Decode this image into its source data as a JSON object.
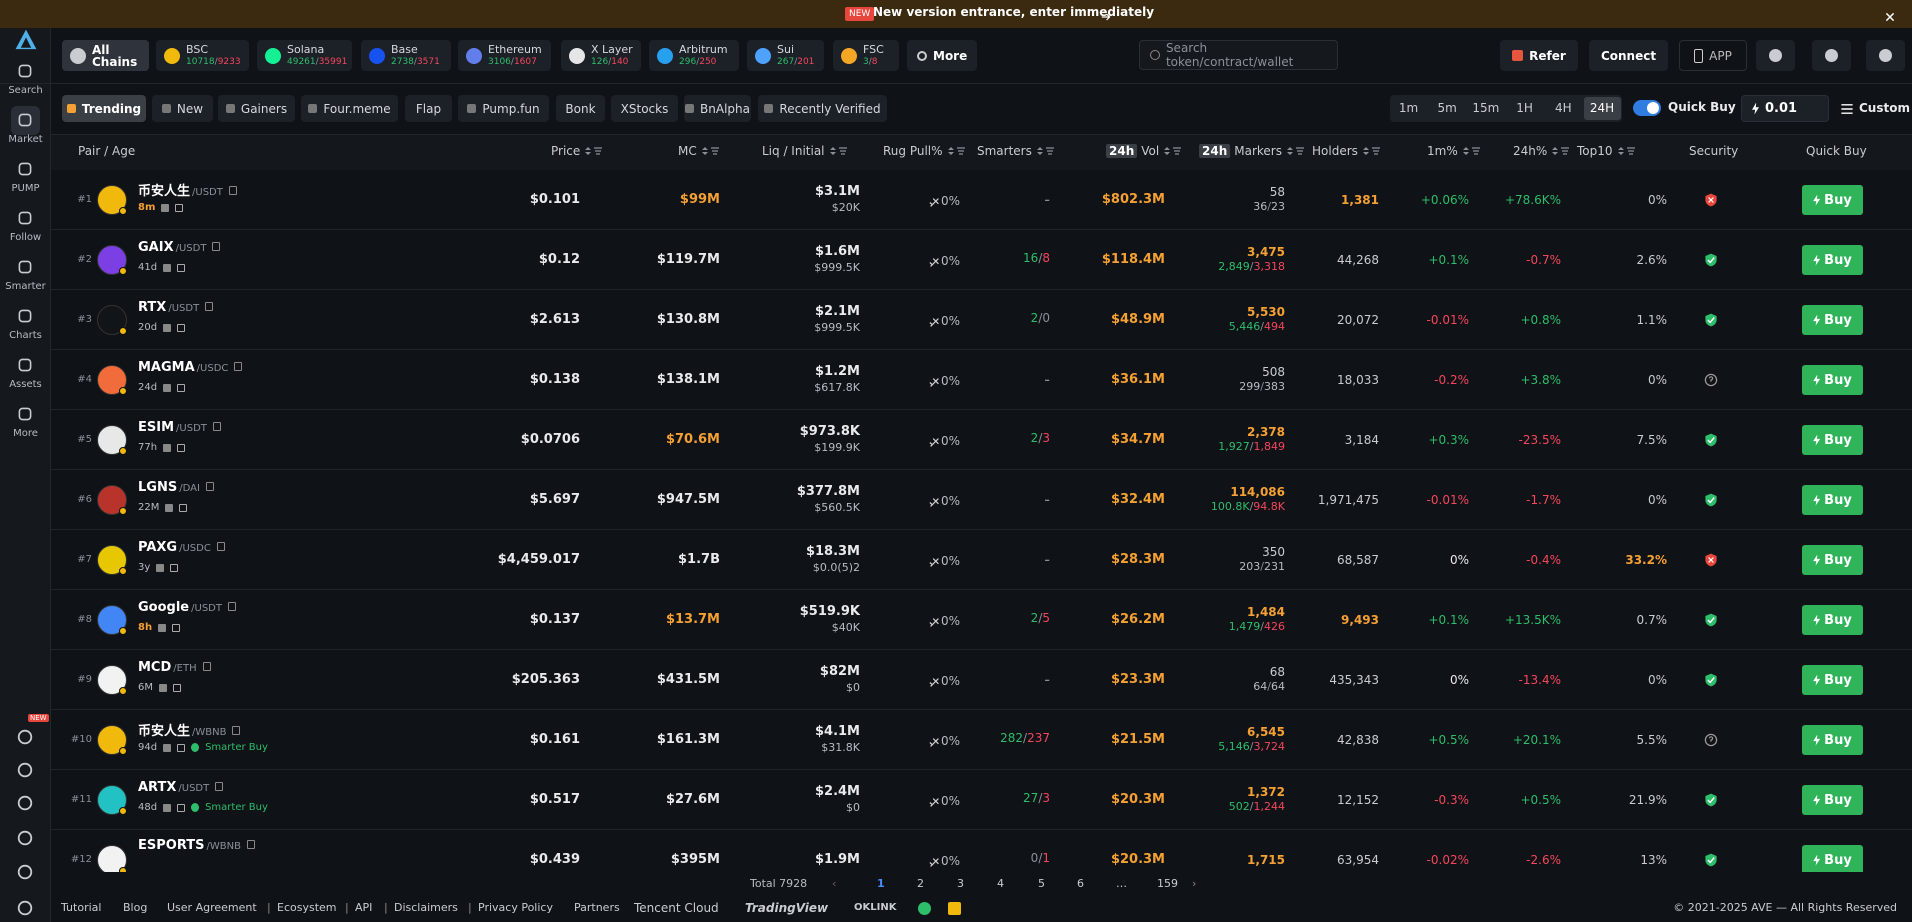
{
  "banner": {
    "badge": "NEW",
    "text": "New version entrance, enter immediately"
  },
  "separator": "/",
  "divider": "|",
  "sidebar": {
    "items": [
      "Search",
      "Market",
      "PUMP",
      "Follow",
      "Smarter",
      "Charts",
      "Assets",
      "More"
    ],
    "active": 1,
    "new_badge": "NEW"
  },
  "chains": [
    {
      "name": "All Chains",
      "color": "#c9ccd1"
    },
    {
      "name": "BSC",
      "a": "10718",
      "b": "9233",
      "color": "#f0b90b"
    },
    {
      "name": "Solana",
      "a": "49261",
      "b": "35991",
      "color": "#14f195"
    },
    {
      "name": "Base",
      "a": "2738",
      "b": "3571",
      "color": "#1652f0"
    },
    {
      "name": "Ethereum",
      "a": "3106",
      "b": "1607",
      "color": "#627eea"
    },
    {
      "name": "X Layer",
      "a": "126",
      "b": "140",
      "color": "#e6e6e6"
    },
    {
      "name": "Arbitrum",
      "a": "296",
      "b": "250",
      "color": "#28a0f0"
    },
    {
      "name": "Sui",
      "a": "267",
      "b": "201",
      "color": "#4da2ff"
    },
    {
      "name": "FSC",
      "a": "3",
      "b": "8",
      "color": "#f5a623"
    }
  ],
  "more": "More",
  "search": "Search token/contract/wallet",
  "header_buttons": {
    "refer": "Refer",
    "connect": "Connect",
    "app": "APP"
  },
  "tabs": [
    "Trending",
    "New",
    "Gainers",
    "Four.meme",
    "Flap",
    "Pump.fun",
    "Bonk",
    "XStocks",
    "BnAlpha",
    "Recently Verified"
  ],
  "intervals": [
    "1m",
    "5m",
    "15m",
    "1H",
    "4H",
    "24H"
  ],
  "interval_active": 5,
  "quick_buy": "Quick Buy",
  "amount": "0.01",
  "custom": "Custom",
  "table": {
    "columns": [
      {
        "label": "Pair / Age"
      },
      {
        "label": "Price"
      },
      {
        "label": "MC"
      },
      {
        "label": "Liq / Initial"
      },
      {
        "label": "Rug Pull%"
      },
      {
        "label": "Smarters"
      },
      {
        "badge": "24h",
        "label": "Vol"
      },
      {
        "badge": "24h",
        "label": "Markers"
      },
      {
        "label": "Holders"
      },
      {
        "label": "1m%"
      },
      {
        "label": "24h%"
      },
      {
        "label": "Top10"
      },
      {
        "label": "Security"
      },
      {
        "label": "Quick Buy"
      }
    ],
    "buy_label": "Buy",
    "tag_label": "Smarter Buy",
    "rows": [
      {
        "rank": "#1",
        "name": "币安人生",
        "quote": "/USDT",
        "age": "8m",
        "price": "$0.101",
        "mc": "$99M",
        "liq": "$3.1M",
        "initial": "$20K",
        "rug": "0%",
        "smarters": "-",
        "vol": "$802.3M",
        "markers": "58",
        "markers_split": [
          "36",
          "23"
        ],
        "holders": "1,381",
        "m1": "+0.06%",
        "h24": "+78.6K%",
        "top10": "0%",
        "security": "danger",
        "logo": "#f0b90b",
        "hot": [
          "age",
          "mc",
          "holders"
        ]
      },
      {
        "rank": "#2",
        "name": "GAIX",
        "quote": "/USDT",
        "age": "41d",
        "price": "$0.12",
        "mc": "$119.7M",
        "liq": "$1.6M",
        "initial": "$999.5K",
        "rug": "0%",
        "smarters": [
          "16",
          "8"
        ],
        "vol": "$118.4M",
        "markers": "3,475",
        "markers_split": [
          "2,849",
          "3,318"
        ],
        "holders": "44,268",
        "m1": "+0.1%",
        "h24": "-0.7%",
        "top10": "2.6%",
        "security": "safe",
        "logo": "#7b3fe4",
        "hot": [
          "markers"
        ]
      },
      {
        "rank": "#3",
        "name": "RTX",
        "quote": "/USDT",
        "age": "20d",
        "price": "$2.613",
        "mc": "$130.8M",
        "liq": "$2.1M",
        "initial": "$999.5K",
        "rug": "0%",
        "smarters": [
          "2",
          "0"
        ],
        "vol": "$48.9M",
        "markers": "5,530",
        "markers_split": [
          "5,446",
          "494"
        ],
        "holders": "20,072",
        "m1": "-0.01%",
        "h24": "+0.8%",
        "top10": "1.1%",
        "security": "safe",
        "logo": "#111418",
        "hot": [
          "markers"
        ]
      },
      {
        "rank": "#4",
        "name": "MAGMA",
        "quote": "/USDC",
        "age": "24d",
        "price": "$0.138",
        "mc": "$138.1M",
        "liq": "$1.2M",
        "initial": "$617.8K",
        "rug": "0%",
        "smarters": "-",
        "vol": "$36.1M",
        "markers": "508",
        "markers_split": [
          "299",
          "383"
        ],
        "holders": "18,033",
        "m1": "-0.2%",
        "h24": "+3.8%",
        "top10": "0%",
        "security": "unknown",
        "logo": "#f26b3a",
        "hot": []
      },
      {
        "rank": "#5",
        "name": "ESIM",
        "quote": "/USDT",
        "age": "77h",
        "price": "$0.0706",
        "mc": "$70.6M",
        "liq": "$973.8K",
        "initial": "$199.9K",
        "rug": "0%",
        "smarters": [
          "2",
          "3"
        ],
        "vol": "$34.7M",
        "markers": "2,378",
        "markers_split": [
          "1,927",
          "1,849"
        ],
        "holders": "3,184",
        "m1": "+0.3%",
        "h24": "-23.5%",
        "top10": "7.5%",
        "security": "safe",
        "logo": "#e8e8e8",
        "hot": [
          "mc",
          "markers"
        ]
      },
      {
        "rank": "#6",
        "name": "LGNS",
        "quote": "/DAI",
        "age": "22M",
        "price": "$5.697",
        "mc": "$947.5M",
        "liq": "$377.8M",
        "initial": "$560.5K",
        "rug": "0%",
        "smarters": "-",
        "vol": "$32.4M",
        "markers": "114,086",
        "markers_split": [
          "100.8K",
          "94.8K"
        ],
        "holders": "1,971,475",
        "m1": "-0.01%",
        "h24": "-1.7%",
        "top10": "0%",
        "security": "safe",
        "logo": "#b8342b",
        "hot": [
          "markers"
        ]
      },
      {
        "rank": "#7",
        "name": "PAXG",
        "quote": "/USDC",
        "age": "3y",
        "price": "$4,459.017",
        "mc": "$1.7B",
        "liq": "$18.3M",
        "initial": "$0.0(5)2",
        "rug": "0%",
        "smarters": "-",
        "vol": "$28.3M",
        "markers": "350",
        "markers_split": [
          "203",
          "231"
        ],
        "holders": "68,587",
        "m1": "0%",
        "h24": "-0.4%",
        "top10": "33.2%",
        "security": "danger",
        "logo": "#e7c800",
        "hot": [
          "top10"
        ]
      },
      {
        "rank": "#8",
        "name": "Google",
        "quote": "/USDT",
        "age": "8h",
        "price": "$0.137",
        "mc": "$13.7M",
        "liq": "$519.9K",
        "initial": "$40K",
        "rug": "0%",
        "smarters": [
          "2",
          "5"
        ],
        "vol": "$26.2M",
        "markers": "1,484",
        "markers_split": [
          "1,479",
          "426"
        ],
        "holders": "9,493",
        "m1": "+0.1%",
        "h24": "+13.5K%",
        "top10": "0.7%",
        "security": "safe",
        "logo": "#4285f4",
        "hot": [
          "age",
          "mc",
          "markers",
          "holders"
        ]
      },
      {
        "rank": "#9",
        "name": "MCD",
        "quote": "/ETH",
        "age": "6M",
        "price": "$205.363",
        "mc": "$431.5M",
        "liq": "$82M",
        "initial": "$0",
        "rug": "0%",
        "smarters": "-",
        "vol": "$23.3M",
        "markers": "68",
        "markers_split": [
          "64",
          "64"
        ],
        "holders": "435,343",
        "m1": "0%",
        "h24": "-13.4%",
        "top10": "0%",
        "security": "safe",
        "logo": "#f2f2f2",
        "hot": []
      },
      {
        "rank": "#10",
        "name": "币安人生",
        "quote": "/WBNB",
        "age": "94d",
        "tag": true,
        "price": "$0.161",
        "mc": "$161.3M",
        "liq": "$4.1M",
        "initial": "$31.8K",
        "rug": "0%",
        "smarters": [
          "282",
          "237"
        ],
        "vol": "$21.5M",
        "markers": "6,545",
        "markers_split": [
          "5,146",
          "3,724"
        ],
        "holders": "42,838",
        "m1": "+0.5%",
        "h24": "+20.1%",
        "top10": "5.5%",
        "security": "unknown",
        "logo": "#f0b90b",
        "hot": [
          "markers"
        ]
      },
      {
        "rank": "#11",
        "name": "ARTX",
        "quote": "/USDT",
        "age": "48d",
        "tag": true,
        "price": "$0.517",
        "mc": "$27.6M",
        "liq": "$2.4M",
        "initial": "$0",
        "rug": "0%",
        "smarters": [
          "27",
          "3"
        ],
        "vol": "$20.3M",
        "markers": "1,372",
        "markers_split": [
          "502",
          "1,244"
        ],
        "holders": "12,152",
        "m1": "-0.3%",
        "h24": "+0.5%",
        "top10": "21.9%",
        "security": "safe",
        "logo": "#22c1c3",
        "hot": [
          "markers"
        ]
      },
      {
        "rank": "#12",
        "name": "ESPORTS",
        "quote": "/WBNB",
        "price": "$0.439",
        "mc": "$395M",
        "liq": "$1.9M",
        "rug": "0%",
        "smarters": [
          "0",
          "1"
        ],
        "vol": "$20.3M",
        "markers": "1,715",
        "holders": "63,954",
        "m1": "-0.02%",
        "h24": "-2.6%",
        "top10": "13%",
        "security": "safe",
        "logo": "#f2f2f2",
        "hot": [
          "markers"
        ]
      }
    ]
  },
  "pagination": {
    "total": "Total 7928",
    "pages": [
      "1",
      "2",
      "3",
      "4",
      "5",
      "6",
      "…",
      "159"
    ],
    "current": 0
  },
  "footer": {
    "links": [
      "Tutorial",
      "Blog",
      "User Agreement",
      "Ecosystem",
      "API",
      "Disclaimers",
      "Privacy Policy",
      "Partners"
    ],
    "partners": [
      "Tencent Cloud",
      "TradingView",
      "OKLINK"
    ],
    "copyright": "© 2021-2025 AVE — All Rights Reserved"
  }
}
